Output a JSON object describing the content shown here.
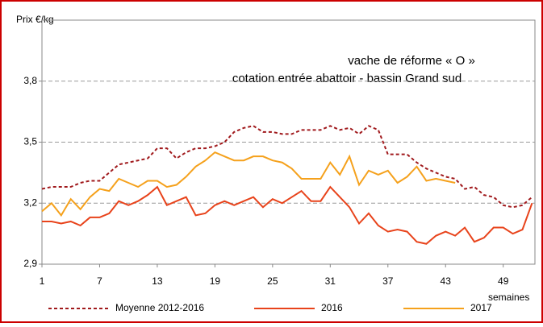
{
  "chart_data": {
    "type": "line",
    "title": "vache de réforme « O »",
    "subtitle": "cotation entrée abattoir - bassin Grand sud",
    "y_label": "Prix €/kg",
    "x_label": "semaines",
    "x": [
      1,
      2,
      3,
      4,
      5,
      6,
      7,
      8,
      9,
      10,
      11,
      12,
      13,
      14,
      15,
      16,
      17,
      18,
      19,
      20,
      21,
      22,
      23,
      24,
      25,
      26,
      27,
      28,
      29,
      30,
      31,
      32,
      33,
      34,
      35,
      36,
      37,
      38,
      39,
      40,
      41,
      42,
      43,
      44,
      45,
      46,
      47,
      48,
      49,
      50,
      51,
      52
    ],
    "xlim": [
      1,
      52.3
    ],
    "xticks": [
      1,
      7,
      13,
      19,
      25,
      31,
      37,
      43,
      49
    ],
    "ylim": [
      2.9,
      4.1
    ],
    "yticks": [
      {
        "value": 2.9,
        "label": "2,9"
      },
      {
        "value": 3.2,
        "label": "3,2"
      },
      {
        "value": 3.5,
        "label": "3,5"
      },
      {
        "value": 3.8,
        "label": "3,8"
      }
    ],
    "grid": true,
    "legend": "bottom",
    "series": [
      {
        "name": "Moyenne 2012-2016",
        "color": "#a0191c",
        "dashed": true,
        "values": [
          3.27,
          3.28,
          3.28,
          3.28,
          3.3,
          3.31,
          3.31,
          3.35,
          3.39,
          3.4,
          3.41,
          3.42,
          3.47,
          3.47,
          3.42,
          3.45,
          3.47,
          3.47,
          3.48,
          3.5,
          3.55,
          3.57,
          3.58,
          3.55,
          3.55,
          3.54,
          3.54,
          3.56,
          3.56,
          3.56,
          3.58,
          3.56,
          3.57,
          3.54,
          3.58,
          3.56,
          3.44,
          3.44,
          3.44,
          3.4,
          3.37,
          3.35,
          3.33,
          3.32,
          3.27,
          3.28,
          3.24,
          3.23,
          3.19,
          3.18,
          3.19,
          3.23
        ]
      },
      {
        "name": "2016",
        "color": "#e8431b",
        "values": [
          3.11,
          3.11,
          3.1,
          3.11,
          3.09,
          3.13,
          3.13,
          3.15,
          3.21,
          3.19,
          3.21,
          3.24,
          3.28,
          3.19,
          3.21,
          3.23,
          3.14,
          3.15,
          3.19,
          3.21,
          3.19,
          3.21,
          3.23,
          3.18,
          3.22,
          3.2,
          3.23,
          3.26,
          3.21,
          3.21,
          3.28,
          3.23,
          3.18,
          3.1,
          3.15,
          3.09,
          3.06,
          3.07,
          3.06,
          3.01,
          3.0,
          3.04,
          3.06,
          3.04,
          3.08,
          3.01,
          3.03,
          3.08,
          3.08,
          3.05,
          3.07,
          3.2
        ]
      },
      {
        "name": "2017",
        "color": "#f5a11c",
        "values": [
          3.16,
          3.2,
          3.14,
          3.22,
          3.17,
          3.23,
          3.27,
          3.26,
          3.32,
          3.3,
          3.28,
          3.31,
          3.31,
          3.28,
          3.29,
          3.33,
          3.38,
          3.41,
          3.45,
          3.43,
          3.41,
          3.41,
          3.43,
          3.43,
          3.41,
          3.4,
          3.37,
          3.32,
          3.32,
          3.32,
          3.4,
          3.34,
          3.43,
          3.29,
          3.36,
          3.34,
          3.36,
          3.3,
          3.33,
          3.38,
          3.31,
          3.32,
          3.31,
          3.3,
          null,
          null,
          null,
          null,
          null,
          null,
          null,
          null
        ]
      }
    ]
  }
}
